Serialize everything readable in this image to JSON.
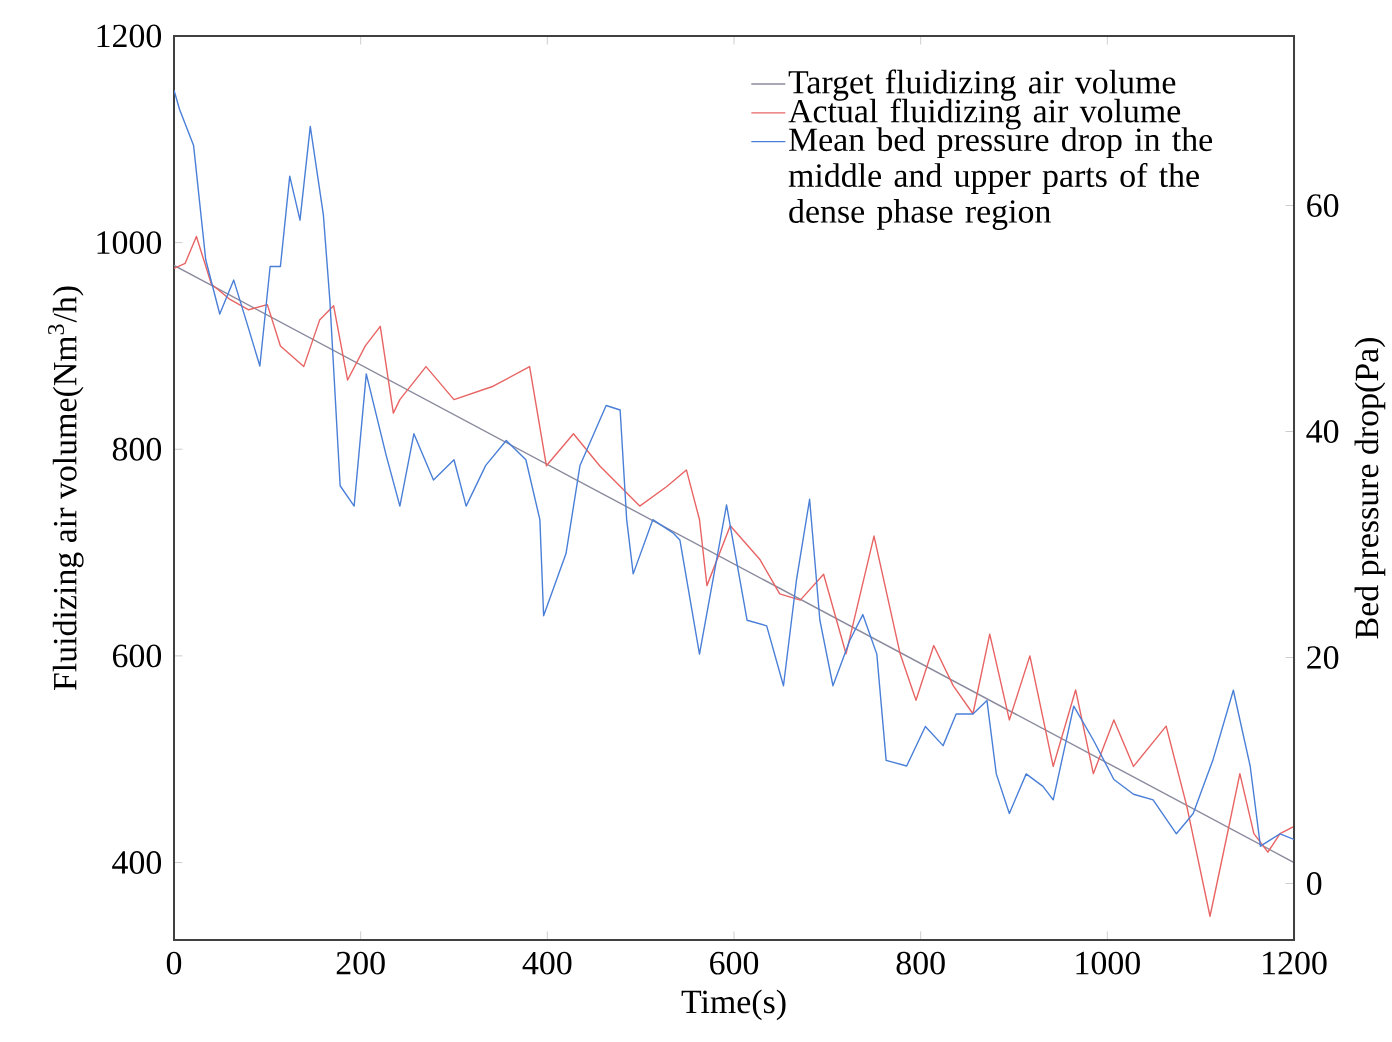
{
  "chart_data": {
    "type": "line",
    "xlabel": "Time(s)",
    "ylabel": "Fluidizing air volume(Nm$^{3}$/h)",
    "y2label": "Bed pressure drop(Pa)",
    "xlim": [
      0,
      1200
    ],
    "xticks": [
      0,
      200,
      400,
      600,
      800,
      1000,
      1200
    ],
    "ylim": [
      325,
      1200
    ],
    "yticks": [
      400,
      600,
      800,
      1000,
      1200
    ],
    "y2lim": [
      -5,
      75
    ],
    "y2ticks": [
      0,
      20,
      40,
      60
    ],
    "legend": "top right",
    "series": [
      {
        "name": "Target fluidizing air volume",
        "color": "#8a8a9e",
        "x": [
          0,
          1200
        ],
        "values": [
          978,
          400
        ]
      },
      {
        "name": "Actual fluidizing air volume",
        "color": "#e86464",
        "x": [
          0,
          12,
          24,
          40,
          60,
          80,
          100,
          114,
          139,
          156,
          171,
          186,
          205,
          221,
          235,
          242,
          270,
          300,
          342,
          381,
          399,
          428,
          456,
          499,
          528,
          549,
          563,
          571,
          596,
          628,
          649,
          671,
          696,
          720,
          750,
          778,
          795,
          814,
          835,
          856,
          874,
          895,
          917,
          942,
          966,
          985,
          1007,
          1028,
          1063,
          1085,
          1110,
          1124,
          1142,
          1157,
          1172,
          1185,
          1200
        ],
        "values": [
          975,
          980,
          1006,
          960,
          945,
          935,
          940,
          900,
          880,
          925,
          939,
          867,
          900,
          919,
          835,
          848,
          880,
          848,
          861,
          880,
          784,
          815,
          784,
          745,
          764,
          780,
          732,
          668,
          726,
          693,
          660,
          654,
          679,
          602,
          716,
          602,
          557,
          610,
          571,
          544,
          621,
          538,
          600,
          493,
          567,
          486,
          538,
          493,
          532,
          455,
          348,
          408,
          486,
          428,
          410,
          428,
          435
        ]
      },
      {
        "name": "Mean bed pressure drop in the middle and upper parts of the dense phase region",
        "color": "#4a7fd8",
        "axis": "y2",
        "x": [
          0,
          6,
          21,
          34,
          49,
          64,
          77,
          92,
          103,
          114,
          124,
          135,
          146,
          160,
          167,
          178,
          193,
          206,
          227,
          242,
          257,
          278,
          300,
          313,
          334,
          356,
          377,
          392,
          396,
          420,
          435,
          463,
          478,
          485,
          492,
          513,
          535,
          542,
          563,
          592,
          614,
          635,
          653,
          667,
          681,
          692,
          706,
          724,
          738,
          753,
          763,
          785,
          805,
          824,
          838,
          856,
          871,
          881,
          895,
          913,
          931,
          942,
          964,
          985,
          1007,
          1028,
          1049,
          1074,
          1092,
          1113,
          1135,
          1153,
          1164,
          1185,
          1200
        ],
        "values": [
          70.2,
          68.5,
          65.3,
          55.2,
          50.4,
          53.4,
          49.9,
          45.8,
          54.6,
          54.6,
          62.6,
          58.7,
          67.0,
          59.2,
          51.6,
          35.2,
          33.4,
          45.1,
          38.0,
          33.4,
          39.8,
          35.7,
          37.5,
          33.4,
          37.0,
          39.2,
          37.5,
          32.2,
          23.7,
          29.2,
          37.0,
          42.3,
          41.9,
          32.2,
          27.4,
          32.2,
          31.0,
          30.4,
          20.3,
          33.5,
          23.3,
          22.8,
          17.5,
          26.9,
          34.0,
          23.3,
          17.5,
          21.5,
          23.8,
          20.3,
          10.9,
          10.4,
          13.9,
          12.2,
          15.0,
          15.0,
          16.2,
          9.7,
          6.2,
          9.7,
          8.6,
          7.4,
          15.7,
          12.7,
          9.2,
          7.9,
          7.4,
          4.4,
          6.2,
          10.9,
          17.1,
          10.4,
          3.3,
          4.4,
          3.9
        ]
      }
    ]
  }
}
